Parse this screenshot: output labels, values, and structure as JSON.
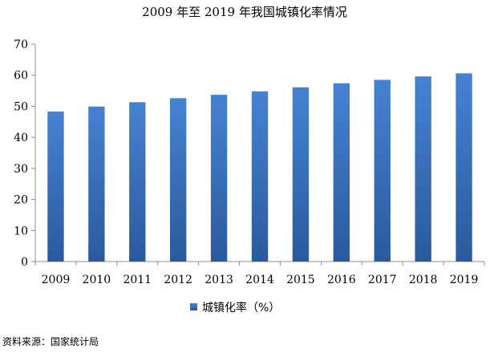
{
  "chart_data": {
    "type": "bar",
    "title": "2009 年至 2019 年我国城镇化率情况",
    "categories": [
      "2009",
      "2010",
      "2011",
      "2012",
      "2013",
      "2014",
      "2015",
      "2016",
      "2017",
      "2018",
      "2019"
    ],
    "series": [
      {
        "name": "城镇化率（%）",
        "values": [
          48.3,
          49.9,
          51.3,
          52.6,
          53.7,
          54.8,
          56.1,
          57.4,
          58.5,
          59.6,
          60.6
        ]
      }
    ],
    "ylim": [
      0,
      70
    ],
    "yticks": [
      0,
      10,
      20,
      30,
      40,
      50,
      60,
      70
    ],
    "grid": false,
    "legend": "bottom",
    "bar_color": "#3E76C7",
    "bar_color_dark": "#2B5C9F"
  },
  "source": "资料来源：国家统计局"
}
